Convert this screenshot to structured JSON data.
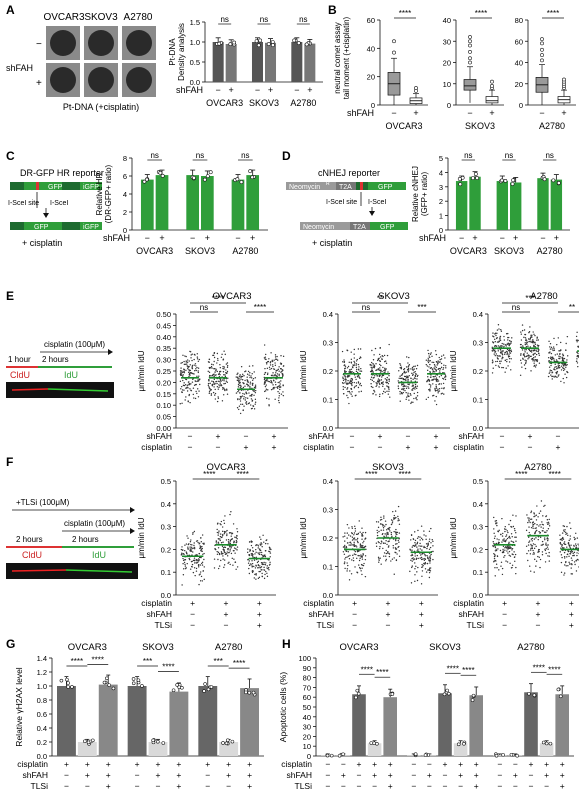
{
  "panels": {
    "A": {
      "letter": "A",
      "cell_lines": [
        "OVCAR3",
        "SKOV3",
        "A2780"
      ],
      "row_label": "shFAH",
      "row_signs": [
        "−",
        "+"
      ],
      "caption": "Pt-DNA (+cisplatin)",
      "chart_data": {
        "type": "bar",
        "categories": [
          "OVCAR3",
          "SKOV3",
          "A2780"
        ],
        "series": [
          {
            "values": [
              1.0,
              1.0,
              1.0
            ]
          },
          {
            "values": [
              0.95,
              0.98,
              0.96
            ]
          }
        ],
        "ylabel": "Pt-DNA\nDensity analysis",
        "ylim": [
          0,
          1.5
        ],
        "yticks": [
          "0.0",
          "0.5",
          "1.0",
          "1.5"
        ],
        "sig": [
          "ns",
          "ns",
          "ns"
        ],
        "xrow_label": "shFAH",
        "xrow_signs": [
          "−",
          "+"
        ]
      }
    },
    "B": {
      "letter": "B",
      "chart_data": {
        "type": "box",
        "ylabel": "neutral comet assay\ntail moment (+cisplatin)",
        "panels": [
          {
            "title": "OVCAR3",
            "ylim": [
              0,
              60
            ],
            "yticks": [
              "0",
              "20",
              "40",
              "60"
            ],
            "sig": "****",
            "boxes": [
              {
                "q1": 7,
                "med": 15,
                "q3": 23,
                "lo": 0,
                "hi": 33,
                "out": [
                  37,
                  45
                ]
              },
              {
                "q1": 1,
                "med": 3,
                "q3": 5,
                "lo": 0,
                "hi": 8,
                "out": [
                  10,
                  12
                ]
              }
            ]
          },
          {
            "title": "SKOV3",
            "ylim": [
              0,
              40
            ],
            "yticks": [
              "0",
              "10",
              "20",
              "30",
              "40"
            ],
            "sig": "****",
            "boxes": [
              {
                "q1": 7,
                "med": 9,
                "q3": 12,
                "lo": 1,
                "hi": 18,
                "out": [
                  20,
                  22,
                  25,
                  28,
                  30,
                  32
                ]
              },
              {
                "q1": 1,
                "med": 2,
                "q3": 4,
                "lo": 0,
                "hi": 7,
                "out": [
                  8,
                  9,
                  11
                ]
              }
            ]
          },
          {
            "title": "A2780",
            "ylim": [
              0,
              80
            ],
            "yticks": [
              "0",
              "20",
              "40",
              "60",
              "80"
            ],
            "sig": "****",
            "boxes": [
              {
                "q1": 12,
                "med": 19,
                "q3": 26,
                "lo": 0,
                "hi": 38,
                "out": [
                  42,
                  47,
                  52,
                  58,
                  62
                ]
              },
              {
                "q1": 2,
                "med": 5,
                "q3": 8,
                "lo": 0,
                "hi": 14,
                "out": [
                  16,
                  18,
                  20,
                  22,
                  24
                ]
              }
            ]
          }
        ],
        "xrow_label": "shFAH",
        "xrow_signs": [
          "−",
          "+"
        ]
      }
    },
    "C": {
      "letter": "C",
      "diagram": {
        "title": "DR-GFP HR reporter",
        "gfp1": "GFP",
        "gfp2": "iGFP",
        "gfp3": "GFP",
        "gfp4": "iGFP",
        "site": "I-SceI site",
        "enzyme": "I-SceI",
        "treat": "+ cisplatin"
      },
      "chart_data": {
        "type": "bar",
        "categories": [
          "OVCAR3",
          "SKOV3",
          "A2780"
        ],
        "series": [
          {
            "values": [
              5.6,
              6.1,
              5.6
            ]
          },
          {
            "values": [
              6.1,
              6.0,
              6.1
            ]
          }
        ],
        "ylabel": "Relative HR\n(DR-GFP+ ratio)",
        "ylim": [
          0,
          8
        ],
        "yticks": [
          "0",
          "2",
          "4",
          "6",
          "8"
        ],
        "sig": [
          "ns",
          "ns",
          "ns"
        ],
        "xrow_label": "shFAH",
        "xrow_signs": [
          "−",
          "+"
        ],
        "color": "#2f9e3a"
      }
    },
    "D": {
      "letter": "D",
      "diagram": {
        "title": "cNHEJ reporter",
        "neo": "Neomycin",
        "neo_sup": "R",
        "t2a": "T2A",
        "gfp": "GFP",
        "site": "I-SceI site",
        "enzyme": "I-SceI",
        "treat": "+ cisplatin"
      },
      "chart_data": {
        "type": "bar",
        "categories": [
          "OVCAR3",
          "SKOV3",
          "A2780"
        ],
        "series": [
          {
            "values": [
              3.4,
              3.4,
              3.6
            ]
          },
          {
            "values": [
              3.7,
              3.3,
              3.5
            ]
          }
        ],
        "ylabel": "Relative cNHEJ\n(GFP+ ratio)",
        "ylim": [
          0,
          5
        ],
        "yticks": [
          "0",
          "1",
          "2",
          "3",
          "4",
          "5"
        ],
        "sig": [
          "ns",
          "ns",
          "ns"
        ],
        "xrow_label": "shFAH",
        "xrow_signs": [
          "−",
          "+"
        ],
        "color": "#2f9e3a"
      }
    },
    "E": {
      "letter": "E",
      "schema": {
        "drug": "cisplatin (100μM)",
        "t1": "1 hour",
        "t2": "2 hours",
        "l1": "CldU",
        "l2": "IdU"
      },
      "chart_data": {
        "type": "scatter",
        "ylabel": "μm/min IdU",
        "rows": [
          {
            "label": "shFAH",
            "signs": [
              "−",
              "+",
              "−",
              "+"
            ]
          },
          {
            "label": "cisplatin",
            "signs": [
              "−",
              "−",
              "+",
              "+"
            ]
          }
        ],
        "panels": [
          {
            "title": "OVCAR3",
            "ylim": [
              0,
              0.5
            ],
            "yticks": [
              "0.00",
              "0.05",
              "0.10",
              "0.15",
              "0.20",
              "0.25",
              "0.30",
              "0.35",
              "0.40",
              "0.45",
              "0.50"
            ],
            "means": [
              0.22,
              0.22,
              0.17,
              0.22
            ],
            "spread": [
              0.13,
              0.13,
              0.12,
              0.13
            ],
            "sigs": [
              {
                "a": 0,
                "b": 1,
                "t": "ns",
                "lvl": 0
              },
              {
                "a": 0,
                "b": 2,
                "t": "****",
                "lvl": 1
              },
              {
                "a": 2,
                "b": 3,
                "t": "****",
                "lvl": 0
              }
            ]
          },
          {
            "title": "SKOV3",
            "ylim": [
              0,
              0.4
            ],
            "yticks": [
              "0.0",
              "0.1",
              "0.2",
              "0.3",
              "0.4"
            ],
            "means": [
              0.19,
              0.19,
              0.16,
              0.19
            ],
            "spread": [
              0.1,
              0.1,
              0.09,
              0.1
            ],
            "sigs": [
              {
                "a": 0,
                "b": 1,
                "t": "ns",
                "lvl": 0
              },
              {
                "a": 0,
                "b": 2,
                "t": "**",
                "lvl": 1
              },
              {
                "a": 2,
                "b": 3,
                "t": "***",
                "lvl": 0
              }
            ]
          },
          {
            "title": "A2780",
            "ylim": [
              0,
              0.4
            ],
            "yticks": [
              "0.0",
              "0.1",
              "0.2",
              "0.3",
              "0.4"
            ],
            "means": [
              0.28,
              0.28,
              0.23,
              0.27
            ],
            "spread": [
              0.09,
              0.09,
              0.08,
              0.09
            ],
            "sigs": [
              {
                "a": 0,
                "b": 1,
                "t": "ns",
                "lvl": 0
              },
              {
                "a": 0,
                "b": 2,
                "t": "***",
                "lvl": 1
              },
              {
                "a": 2,
                "b": 3,
                "t": "**",
                "lvl": 0
              }
            ]
          }
        ]
      }
    },
    "F": {
      "letter": "F",
      "schema": {
        "drug1": "+TLSi (100μM)",
        "drug2": "cisplatin (100μM)",
        "t1": "2 hours",
        "t2": "2 hours",
        "l1": "CldU",
        "l2": "IdU"
      },
      "chart_data": {
        "type": "scatter",
        "ylabel": "μm/min IdU",
        "rows": [
          {
            "label": "cisplatin",
            "signs": [
              "+",
              "+",
              "+"
            ]
          },
          {
            "label": "shFAH",
            "signs": [
              "−",
              "+",
              "+"
            ]
          },
          {
            "label": "TLSi",
            "signs": [
              "−",
              "−",
              "+"
            ]
          }
        ],
        "panels": [
          {
            "title": "OVCAR3",
            "ylim": [
              0,
              0.5
            ],
            "yticks": [
              "0.0",
              "0.1",
              "0.2",
              "0.3",
              "0.4",
              "0.5"
            ],
            "means": [
              0.17,
              0.22,
              0.16
            ],
            "spread": [
              0.12,
              0.13,
              0.11
            ],
            "sigs": [
              {
                "a": 0,
                "b": 1,
                "t": "****",
                "lvl": 0
              },
              {
                "a": 1,
                "b": 2,
                "t": "****",
                "lvl": 0
              }
            ]
          },
          {
            "title": "SKOV3",
            "ylim": [
              0,
              0.4
            ],
            "yticks": [
              "0.0",
              "0.1",
              "0.2",
              "0.3",
              "0.4"
            ],
            "means": [
              0.16,
              0.2,
              0.15
            ],
            "spread": [
              0.11,
              0.12,
              0.11
            ],
            "sigs": [
              {
                "a": 0,
                "b": 1,
                "t": "****",
                "lvl": 0
              },
              {
                "a": 1,
                "b": 2,
                "t": "****",
                "lvl": 0
              }
            ]
          },
          {
            "title": "A2780",
            "ylim": [
              0,
              0.5
            ],
            "yticks": [
              "0.0",
              "0.1",
              "0.2",
              "0.3",
              "0.4",
              "0.5"
            ],
            "means": [
              0.22,
              0.26,
              0.2
            ],
            "spread": [
              0.14,
              0.15,
              0.13
            ],
            "sigs": [
              {
                "a": 0,
                "b": 1,
                "t": "****",
                "lvl": 0
              },
              {
                "a": 1,
                "b": 2,
                "t": "****",
                "lvl": 0
              }
            ]
          }
        ]
      }
    },
    "G": {
      "letter": "G",
      "chart_data": {
        "type": "bar",
        "ylabel": "Relative γH2AX level",
        "ylim": [
          0,
          1.4
        ],
        "yticks": [
          "0.0",
          "0.2",
          "0.4",
          "0.6",
          "0.8",
          "1.0",
          "1.2",
          "1.4"
        ],
        "groups": [
          {
            "title": "OVCAR3",
            "values": [
              1.0,
              0.2,
              1.02
            ],
            "sigs": [
              {
                "a": 0,
                "b": 1,
                "t": "****"
              },
              {
                "a": 1,
                "b": 2,
                "t": "****"
              }
            ]
          },
          {
            "title": "SKOV3",
            "values": [
              1.0,
              0.2,
              0.92
            ],
            "sigs": [
              {
                "a": 0,
                "b": 1,
                "t": "***"
              },
              {
                "a": 1,
                "b": 2,
                "t": "****"
              }
            ]
          },
          {
            "title": "A2780",
            "values": [
              1.0,
              0.2,
              0.97
            ],
            "sigs": [
              {
                "a": 0,
                "b": 1,
                "t": "***"
              },
              {
                "a": 1,
                "b": 2,
                "t": "****"
              }
            ]
          }
        ],
        "colors": [
          "#666666",
          "#d9d9d9",
          "#888888"
        ],
        "rows": [
          {
            "label": "cisplatin",
            "signs": [
              "+",
              "+",
              "+"
            ]
          },
          {
            "label": "shFAH",
            "signs": [
              "−",
              "+",
              "+"
            ]
          },
          {
            "label": "TLSi",
            "signs": [
              "−",
              "−",
              "+"
            ]
          }
        ]
      }
    },
    "H": {
      "letter": "H",
      "chart_data": {
        "type": "bar",
        "ylabel": "Apoptotic cells (%)",
        "ylim": [
          0,
          100
        ],
        "yticks": [
          "0",
          "10",
          "20",
          "30",
          "40",
          "50",
          "60",
          "70",
          "80",
          "90",
          "100"
        ],
        "groups": [
          {
            "title": "OVCAR3",
            "values": [
              1,
              1,
              63,
              13,
              60
            ],
            "sigs": [
              {
                "a": 2,
                "b": 3,
                "t": "****"
              },
              {
                "a": 3,
                "b": 4,
                "t": "****"
              }
            ]
          },
          {
            "title": "SKOV3",
            "values": [
              1,
              1,
              64,
              13,
              62
            ],
            "sigs": [
              {
                "a": 2,
                "b": 3,
                "t": "****"
              },
              {
                "a": 3,
                "b": 4,
                "t": "****"
              }
            ]
          },
          {
            "title": "A2780",
            "values": [
              1,
              1,
              65,
              13,
              63
            ],
            "sigs": [
              {
                "a": 2,
                "b": 3,
                "t": "****"
              },
              {
                "a": 3,
                "b": 4,
                "t": "****"
              }
            ]
          }
        ],
        "colors": [
          "#cccccc",
          "#cccccc",
          "#666666",
          "#d9d9d9",
          "#888888"
        ],
        "rows": [
          {
            "label": "cisplatin",
            "signs": [
              "−",
              "−",
              "+",
              "+",
              "+"
            ]
          },
          {
            "label": "shFAH",
            "signs": [
              "−",
              "+",
              "−",
              "+",
              "+"
            ]
          },
          {
            "label": "TLSi",
            "signs": [
              "−",
              "−",
              "−",
              "−",
              "+"
            ]
          }
        ]
      }
    }
  }
}
